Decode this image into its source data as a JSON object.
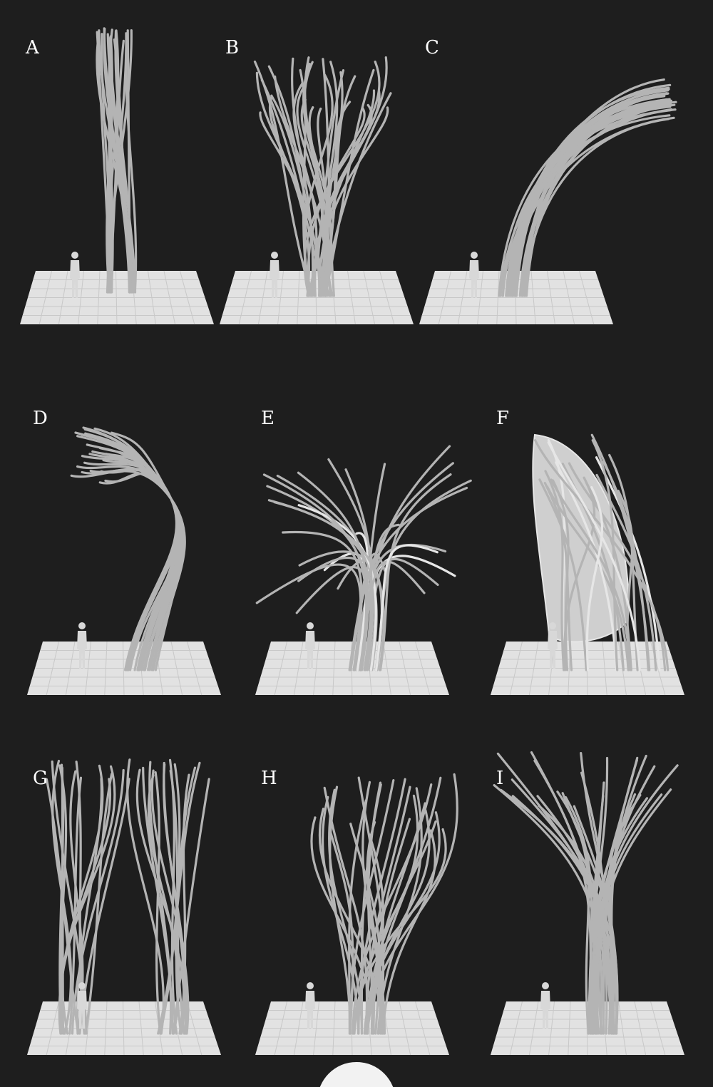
{
  "colors": {
    "background": "#1e1e1e",
    "strand": "#b4b4b4",
    "strand_light": "#e6e6e6",
    "ground": "#e2e2e2",
    "ground_line": "#c8c8c8",
    "figure": "#d8d8d8",
    "sphere": "#f2f2f2",
    "label": "#ffffff"
  },
  "panels": [
    {
      "label": "A",
      "form": "vertical-bundle"
    },
    {
      "label": "B",
      "form": "spreading-wavy"
    },
    {
      "label": "C",
      "form": "arching-curve"
    },
    {
      "label": "D",
      "form": "s-curve"
    },
    {
      "label": "E",
      "form": "explosive-spread"
    },
    {
      "label": "F",
      "form": "shell-canopy"
    },
    {
      "label": "G",
      "form": "twin-columns"
    },
    {
      "label": "H",
      "form": "sphere-cage"
    },
    {
      "label": "I",
      "form": "tree-branching"
    }
  ]
}
